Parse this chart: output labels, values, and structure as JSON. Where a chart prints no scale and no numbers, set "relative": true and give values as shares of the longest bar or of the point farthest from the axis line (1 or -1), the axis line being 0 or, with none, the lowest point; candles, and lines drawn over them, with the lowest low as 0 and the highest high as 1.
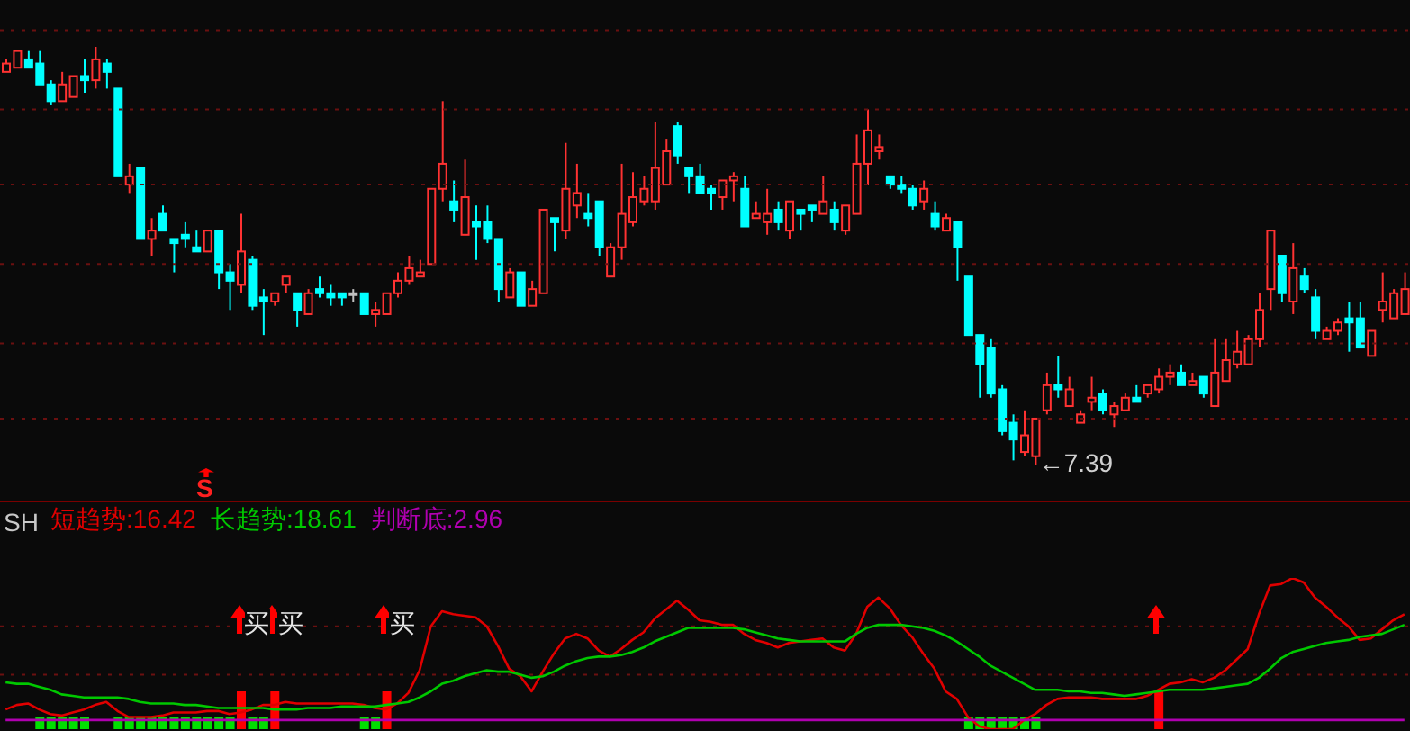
{
  "chart_data": [
    {
      "type": "candlestick",
      "relative": true,
      "ref_lines": [
        {
          "axis": "y",
          "value": 1.04,
          "color": "#6b1010",
          "line_style": "dotted"
        },
        {
          "axis": "y",
          "value": 0.85,
          "color": "#6b1010",
          "line_style": "dotted"
        },
        {
          "axis": "y",
          "value": 0.67,
          "color": "#6b1010",
          "line_style": "dotted"
        },
        {
          "axis": "y",
          "value": 0.48,
          "color": "#6b1010",
          "line_style": "dotted"
        },
        {
          "axis": "y",
          "value": 0.29,
          "color": "#6b1010",
          "line_style": "dotted"
        },
        {
          "axis": "y",
          "value": 0.11,
          "color": "#6b1010",
          "line_style": "dotted"
        }
      ],
      "categories": [
        null,
        null,
        null,
        null,
        null,
        null,
        null,
        null,
        null,
        null,
        null,
        null,
        null,
        null,
        null,
        null,
        null,
        null,
        null,
        null,
        null,
        null,
        null,
        null,
        null,
        null,
        null,
        null,
        null,
        null,
        null,
        null,
        null,
        null,
        null,
        null,
        null,
        null,
        null,
        null,
        null,
        null,
        null,
        null,
        null,
        null,
        null,
        null,
        null,
        null,
        null,
        null,
        null,
        null,
        null,
        null,
        null,
        null,
        null,
        null,
        null,
        null,
        null,
        null,
        null,
        null,
        null,
        null,
        null,
        null,
        null,
        null,
        null,
        null,
        null,
        null,
        null,
        null,
        null,
        null,
        null,
        null,
        null,
        null,
        null,
        null,
        null,
        null,
        null,
        null,
        null,
        null,
        null,
        null,
        null,
        null,
        null,
        null,
        null,
        null,
        null,
        null,
        null,
        null,
        null,
        null,
        null,
        null,
        null,
        null,
        null,
        null,
        null,
        null,
        null,
        null,
        null,
        null,
        null,
        null,
        null,
        null,
        null,
        null,
        null,
        null
      ],
      "ohlc": [
        [
          0.94,
          0.97,
          0.94,
          0.96
        ],
        [
          0.95,
          0.99,
          0.95,
          0.99
        ],
        [
          0.97,
          0.99,
          0.95,
          0.95
        ],
        [
          0.96,
          0.99,
          0.91,
          0.91
        ],
        [
          0.91,
          0.92,
          0.86,
          0.87
        ],
        [
          0.87,
          0.94,
          0.87,
          0.91
        ],
        [
          0.88,
          0.93,
          0.88,
          0.93
        ],
        [
          0.93,
          0.97,
          0.89,
          0.92
        ],
        [
          0.92,
          1.0,
          0.9,
          0.97
        ],
        [
          0.96,
          0.97,
          0.9,
          0.94
        ],
        [
          0.9,
          0.9,
          0.69,
          0.69
        ],
        [
          0.67,
          0.72,
          0.65,
          0.69
        ],
        [
          0.71,
          0.71,
          0.54,
          0.54
        ],
        [
          0.54,
          0.59,
          0.5,
          0.56
        ],
        [
          0.6,
          0.62,
          0.56,
          0.56
        ],
        [
          0.54,
          0.54,
          0.46,
          0.53
        ],
        [
          0.55,
          0.58,
          0.52,
          0.54
        ],
        [
          0.52,
          0.56,
          0.51,
          0.51
        ],
        [
          0.51,
          0.56,
          0.51,
          0.56
        ],
        [
          0.56,
          0.56,
          0.42,
          0.46
        ],
        [
          0.46,
          0.48,
          0.37,
          0.44
        ],
        [
          0.43,
          0.6,
          0.41,
          0.51
        ],
        [
          0.49,
          0.5,
          0.37,
          0.38
        ],
        [
          0.4,
          0.42,
          0.31,
          0.39
        ],
        [
          0.39,
          0.41,
          0.38,
          0.41
        ],
        [
          0.43,
          0.45,
          0.41,
          0.45
        ],
        [
          0.41,
          0.41,
          0.33,
          0.37
        ],
        [
          0.36,
          0.42,
          0.36,
          0.41
        ],
        [
          0.42,
          0.45,
          0.4,
          0.41
        ],
        [
          0.41,
          0.43,
          0.38,
          0.4
        ],
        [
          0.41,
          0.41,
          0.38,
          0.4
        ],
        [
          0.41,
          0.42,
          0.39,
          0.41
        ],
        [
          0.41,
          0.41,
          0.36,
          0.36
        ],
        [
          0.36,
          0.39,
          0.33,
          0.37
        ],
        [
          0.36,
          0.41,
          0.36,
          0.41
        ],
        [
          0.41,
          0.46,
          0.4,
          0.44
        ],
        [
          0.44,
          0.5,
          0.43,
          0.47
        ],
        [
          0.45,
          0.49,
          0.45,
          0.46
        ],
        [
          0.48,
          0.66,
          0.48,
          0.66
        ],
        [
          0.66,
          0.87,
          0.63,
          0.72
        ],
        [
          0.63,
          0.68,
          0.58,
          0.61
        ],
        [
          0.55,
          0.73,
          0.55,
          0.64
        ],
        [
          0.58,
          0.62,
          0.49,
          0.57
        ],
        [
          0.58,
          0.62,
          0.53,
          0.54
        ],
        [
          0.54,
          0.54,
          0.39,
          0.42
        ],
        [
          0.4,
          0.47,
          0.4,
          0.46
        ],
        [
          0.46,
          0.46,
          0.38,
          0.38
        ],
        [
          0.38,
          0.44,
          0.38,
          0.42
        ],
        [
          0.41,
          0.61,
          0.41,
          0.61
        ],
        [
          0.59,
          0.59,
          0.51,
          0.58
        ],
        [
          0.56,
          0.77,
          0.54,
          0.66
        ],
        [
          0.62,
          0.72,
          0.59,
          0.65
        ],
        [
          0.6,
          0.65,
          0.57,
          0.59
        ],
        [
          0.63,
          0.63,
          0.5,
          0.52
        ],
        [
          0.45,
          0.53,
          0.45,
          0.52
        ],
        [
          0.52,
          0.72,
          0.49,
          0.6
        ],
        [
          0.58,
          0.7,
          0.57,
          0.64
        ],
        [
          0.63,
          0.69,
          0.62,
          0.66
        ],
        [
          0.63,
          0.82,
          0.61,
          0.71
        ],
        [
          0.67,
          0.78,
          0.67,
          0.75
        ],
        [
          0.81,
          0.82,
          0.72,
          0.74
        ],
        [
          0.71,
          0.71,
          0.65,
          0.69
        ],
        [
          0.69,
          0.72,
          0.65,
          0.65
        ],
        [
          0.66,
          0.67,
          0.61,
          0.65
        ],
        [
          0.64,
          0.68,
          0.61,
          0.68
        ],
        [
          0.68,
          0.7,
          0.63,
          0.69
        ],
        [
          0.66,
          0.69,
          0.57,
          0.57
        ],
        [
          0.59,
          0.63,
          0.59,
          0.6
        ],
        [
          0.58,
          0.66,
          0.55,
          0.6
        ],
        [
          0.61,
          0.63,
          0.56,
          0.58
        ],
        [
          0.56,
          0.63,
          0.54,
          0.63
        ],
        [
          0.61,
          0.61,
          0.56,
          0.6
        ],
        [
          0.62,
          0.62,
          0.58,
          0.61
        ],
        [
          0.6,
          0.69,
          0.6,
          0.63
        ],
        [
          0.61,
          0.63,
          0.56,
          0.58
        ],
        [
          0.56,
          0.62,
          0.55,
          0.62
        ],
        [
          0.6,
          0.79,
          0.6,
          0.72
        ],
        [
          0.72,
          0.85,
          0.67,
          0.8
        ],
        [
          0.75,
          0.79,
          0.73,
          0.76
        ],
        [
          0.69,
          0.69,
          0.66,
          0.67
        ],
        [
          0.67,
          0.69,
          0.65,
          0.66
        ],
        [
          0.66,
          0.67,
          0.61,
          0.62
        ],
        [
          0.63,
          0.68,
          0.61,
          0.66
        ],
        [
          0.6,
          0.63,
          0.56,
          0.57
        ],
        [
          0.56,
          0.6,
          0.56,
          0.59
        ],
        [
          0.58,
          0.58,
          0.44,
          0.52
        ],
        [
          0.45,
          0.45,
          0.31,
          0.31
        ],
        [
          0.31,
          0.31,
          0.16,
          0.24
        ],
        [
          0.28,
          0.3,
          0.16,
          0.17
        ],
        [
          0.18,
          0.19,
          0.07,
          0.08
        ],
        [
          0.1,
          0.12,
          0.01,
          0.06
        ],
        [
          0.03,
          0.13,
          0.02,
          0.07
        ],
        [
          0.02,
          0.11,
          0,
          0.11
        ],
        [
          0.13,
          0.22,
          0.12,
          0.19
        ],
        [
          0.19,
          0.26,
          0.16,
          0.18
        ],
        [
          0.14,
          0.21,
          0.14,
          0.18
        ],
        [
          0.1,
          0.13,
          0.1,
          0.12
        ],
        [
          0.15,
          0.21,
          0.13,
          0.16
        ],
        [
          0.17,
          0.18,
          0.12,
          0.13
        ],
        [
          0.12,
          0.15,
          0.09,
          0.14
        ],
        [
          0.13,
          0.17,
          0.13,
          0.16
        ],
        [
          0.16,
          0.19,
          0.15,
          0.15
        ],
        [
          0.17,
          0.19,
          0.16,
          0.19
        ],
        [
          0.18,
          0.23,
          0.17,
          0.21
        ],
        [
          0.21,
          0.24,
          0.19,
          0.22
        ],
        [
          0.22,
          0.24,
          0.19,
          0.19
        ],
        [
          0.19,
          0.22,
          0.19,
          0.2
        ],
        [
          0.21,
          0.21,
          0.16,
          0.17
        ],
        [
          0.14,
          0.3,
          0.14,
          0.22
        ],
        [
          0.2,
          0.3,
          0.2,
          0.25
        ],
        [
          0.24,
          0.32,
          0.23,
          0.27
        ],
        [
          0.24,
          0.31,
          0.24,
          0.3
        ],
        [
          0.3,
          0.41,
          0.28,
          0.37
        ],
        [
          0.42,
          0.56,
          0.37,
          0.56
        ],
        [
          0.5,
          0.5,
          0.39,
          0.41
        ],
        [
          0.39,
          0.53,
          0.36,
          0.47
        ],
        [
          0.45,
          0.47,
          0.41,
          0.42
        ],
        [
          0.4,
          0.42,
          0.3,
          0.32
        ],
        [
          0.3,
          0.33,
          0.3,
          0.32
        ],
        [
          0.32,
          0.35,
          0.31,
          0.34
        ],
        [
          0.35,
          0.39,
          0.27,
          0.34
        ],
        [
          0.35,
          0.39,
          0.28,
          0.28
        ],
        [
          0.26,
          0.32,
          0.26,
          0.32
        ],
        [
          0.37,
          0.46,
          0.34,
          0.39
        ],
        [
          0.35,
          0.42,
          0.35,
          0.41
        ],
        [
          0.36,
          0.46,
          0.36,
          0.42
        ]
      ],
      "colors": [
        "#ff3232",
        "#ff3232",
        "#00ffff",
        "#00ffff",
        "#00ffff",
        "#ff3232",
        "#ff3232",
        "#00ffff",
        "#ff3232",
        "#00ffff",
        "#00ffff",
        "#ff3232",
        "#00ffff",
        "#ff3232",
        "#00ffff",
        "#00ffff",
        "#00ffff",
        "#00ffff",
        "#ff3232",
        "#00ffff",
        "#00ffff",
        "#ff3232",
        "#00ffff",
        "#00ffff",
        "#ff3232",
        "#ff3232",
        "#00ffff",
        "#ff3232",
        "#00ffff",
        "#00ffff",
        "#00ffff",
        "#c0c0c0",
        "#00ffff",
        "#ff3232",
        "#ff3232",
        "#ff3232",
        "#ff3232",
        "#ff3232",
        "#ff3232",
        "#ff3232",
        "#00ffff",
        "#ff3232",
        "#00ffff",
        "#00ffff",
        "#00ffff",
        "#ff3232",
        "#00ffff",
        "#ff3232",
        "#ff3232",
        "#00ffff",
        "#ff3232",
        "#ff3232",
        "#00ffff",
        "#00ffff",
        "#ff3232",
        "#ff3232",
        "#ff3232",
        "#ff3232",
        "#ff3232",
        "#ff3232",
        "#00ffff",
        "#00ffff",
        "#00ffff",
        "#00ffff",
        "#ff3232",
        "#ff3232",
        "#00ffff",
        "#ff3232",
        "#ff3232",
        "#00ffff",
        "#ff3232",
        "#00ffff",
        "#00ffff",
        "#ff3232",
        "#00ffff",
        "#ff3232",
        "#ff3232",
        "#ff3232",
        "#ff3232",
        "#00ffff",
        "#00ffff",
        "#00ffff",
        "#ff3232",
        "#00ffff",
        "#ff3232",
        "#00ffff",
        "#00ffff",
        "#00ffff",
        "#00ffff",
        "#00ffff",
        "#00ffff",
        "#ff3232",
        "#ff3232",
        "#ff3232",
        "#00ffff",
        "#ff3232",
        "#ff3232",
        "#ff3232",
        "#00ffff",
        "#ff3232",
        "#ff3232",
        "#00ffff",
        "#ff3232",
        "#ff3232",
        "#ff3232",
        "#00ffff",
        "#ff3232",
        "#00ffff",
        "#ff3232",
        "#ff3232",
        "#ff3232",
        "#ff3232",
        "#ff3232",
        "#ff3232",
        "#00ffff",
        "#ff3232",
        "#00ffff",
        "#00ffff",
        "#ff3232",
        "#ff3232",
        "#00ffff",
        "#00ffff",
        "#ff3232",
        "#ff3232",
        "#ff3232",
        "#ff3232"
      ],
      "annotations": [
        "S",
        "←7.39"
      ]
    },
    {
      "type": "line",
      "relative": true,
      "legend": "top left",
      "ref_lines": [
        {
          "axis": "y",
          "value": 0.68,
          "color": "#6b1010",
          "line_style": "dotted"
        },
        {
          "axis": "y",
          "value": 0.36,
          "color": "#6b1010",
          "line_style": "dotted"
        }
      ],
      "categories": [
        null,
        null,
        null,
        null,
        null,
        null,
        null,
        null,
        null,
        null,
        null,
        null,
        null,
        null,
        null,
        null,
        null,
        null,
        null,
        null,
        null,
        null,
        null,
        null,
        null,
        null,
        null,
        null,
        null,
        null,
        null,
        null,
        null,
        null,
        null,
        null,
        null,
        null,
        null,
        null,
        null,
        null,
        null,
        null,
        null,
        null,
        null,
        null,
        null,
        null,
        null,
        null,
        null,
        null,
        null,
        null,
        null,
        null,
        null,
        null,
        null,
        null,
        null,
        null,
        null,
        null,
        null,
        null,
        null,
        null,
        null,
        null,
        null,
        null,
        null,
        null,
        null,
        null,
        null,
        null,
        null,
        null,
        null,
        null,
        null,
        null,
        null,
        null,
        null,
        null,
        null,
        null,
        null,
        null,
        null,
        null,
        null,
        null,
        null,
        null,
        null,
        null,
        null,
        null,
        null,
        null,
        null,
        null,
        null,
        null,
        null,
        null,
        null,
        null,
        null,
        null,
        null,
        null,
        null,
        null,
        null,
        null,
        null,
        null,
        null,
        null
      ],
      "series": [
        {
          "name": "短趋势:16.42",
          "type": "line",
          "color": "#e00000",
          "values": [
            0.13,
            0.16,
            0.17,
            0.13,
            0.1,
            0.09,
            0.11,
            0.13,
            0.16,
            0.18,
            0.12,
            0.08,
            0.08,
            0.08,
            0.09,
            0.11,
            0.11,
            0.11,
            0.12,
            0.12,
            0.1,
            0.11,
            0.13,
            0.16,
            0.16,
            0.18,
            0.17,
            0.17,
            0.17,
            0.17,
            0.17,
            0.17,
            0.16,
            0.14,
            0.13,
            0.17,
            0.24,
            0.39,
            0.68,
            0.78,
            0.76,
            0.75,
            0.74,
            0.68,
            0.55,
            0.4,
            0.35,
            0.25,
            0.38,
            0.5,
            0.6,
            0.63,
            0.6,
            0.52,
            0.48,
            0.53,
            0.59,
            0.64,
            0.73,
            0.79,
            0.85,
            0.79,
            0.72,
            0.71,
            0.69,
            0.69,
            0.63,
            0.59,
            0.57,
            0.54,
            0.57,
            0.58,
            0.59,
            0.6,
            0.54,
            0.52,
            0.63,
            0.81,
            0.87,
            0.8,
            0.69,
            0.61,
            0.5,
            0.4,
            0.25,
            0.2,
            0.08,
            0.02,
            0,
            0,
            0,
            0.06,
            0.1,
            0.16,
            0.2,
            0.21,
            0.21,
            0.21,
            0.2,
            0.2,
            0.2,
            0.2,
            0.22,
            0.26,
            0.3,
            0.31,
            0.33,
            0.31,
            0.34,
            0.39,
            0.46,
            0.53,
            0.76,
            0.95,
            0.96,
            1,
            0.97,
            0.87,
            0.81,
            0.74,
            0.68,
            0.59,
            0.6,
            0.66,
            0.72,
            0.76
          ]
        },
        {
          "name": "长趋势:18.61",
          "type": "line",
          "color": "#00c800",
          "values": [
            0.31,
            0.3,
            0.3,
            0.28,
            0.26,
            0.23,
            0.22,
            0.21,
            0.21,
            0.21,
            0.21,
            0.2,
            0.18,
            0.17,
            0.17,
            0.17,
            0.16,
            0.16,
            0.15,
            0.14,
            0.14,
            0.14,
            0.14,
            0.14,
            0.13,
            0.13,
            0.13,
            0.14,
            0.14,
            0.14,
            0.15,
            0.15,
            0.15,
            0.15,
            0.16,
            0.17,
            0.18,
            0.21,
            0.25,
            0.3,
            0.32,
            0.35,
            0.37,
            0.39,
            0.38,
            0.38,
            0.36,
            0.34,
            0.35,
            0.38,
            0.42,
            0.45,
            0.47,
            0.48,
            0.48,
            0.49,
            0.51,
            0.54,
            0.58,
            0.61,
            0.64,
            0.67,
            0.67,
            0.67,
            0.67,
            0.67,
            0.66,
            0.64,
            0.62,
            0.6,
            0.59,
            0.58,
            0.58,
            0.58,
            0.58,
            0.58,
            0.63,
            0.67,
            0.69,
            0.69,
            0.69,
            0.68,
            0.67,
            0.65,
            0.62,
            0.58,
            0.53,
            0.48,
            0.42,
            0.38,
            0.34,
            0.3,
            0.26,
            0.26,
            0.26,
            0.25,
            0.25,
            0.24,
            0.24,
            0.23,
            0.22,
            0.23,
            0.24,
            0.25,
            0.26,
            0.26,
            0.26,
            0.26,
            0.27,
            0.28,
            0.29,
            0.3,
            0.34,
            0.4,
            0.47,
            0.51,
            0.53,
            0.55,
            0.57,
            0.58,
            0.59,
            0.61,
            0.62,
            0.63,
            0.66,
            0.69
          ]
        },
        {
          "name": "判断底:2.96",
          "type": "line",
          "color": "#b000b0",
          "values": [
            0.06,
            0.06,
            0.06,
            0.06,
            0.06,
            0.06,
            0.06,
            0.06,
            0.06,
            0.06,
            0.06,
            0.06,
            0.06,
            0.06,
            0.06,
            0.06,
            0.06,
            0.06,
            0.06,
            0.06,
            0.06,
            0.06,
            0.06,
            0.06,
            0.06,
            0.06,
            0.06,
            0.06,
            0.06,
            0.06,
            0.06,
            0.06,
            0.06,
            0.06,
            0.06,
            0.06,
            0.06,
            0.06,
            0.06,
            0.06,
            0.06,
            0.06,
            0.06,
            0.06,
            0.06,
            0.06,
            0.06,
            0.06,
            0.06,
            0.06,
            0.06,
            0.06,
            0.06,
            0.06,
            0.06,
            0.06,
            0.06,
            0.06,
            0.06,
            0.06,
            0.06,
            0.06,
            0.06,
            0.06,
            0.06,
            0.06,
            0.06,
            0.06,
            0.06,
            0.06,
            0.06,
            0.06,
            0.06,
            0.06,
            0.06,
            0.06,
            0.06,
            0.06,
            0.06,
            0.06,
            0.06,
            0.06,
            0.06,
            0.06,
            0.06,
            0.06,
            0.06,
            0.06,
            0.06,
            0.06,
            0.06,
            0.06,
            0.06,
            0.06,
            0.06,
            0.06,
            0.06,
            0.06,
            0.06,
            0.06,
            0.06,
            0.06,
            0.06,
            0.06,
            0.06,
            0.06,
            0.06,
            0.06,
            0.06,
            0.06,
            0.06,
            0.06,
            0.06,
            0.06,
            0.06,
            0.06,
            0.06,
            0.06,
            0.06,
            0.06,
            0.06,
            0.06,
            0.06,
            0.06,
            0.06,
            0.06
          ]
        },
        {
          "type": "bar",
          "color": "#ff0000",
          "values": [
            null,
            null,
            null,
            null,
            null,
            null,
            null,
            null,
            null,
            null,
            null,
            null,
            null,
            null,
            null,
            null,
            null,
            null,
            null,
            null,
            null,
            0.25,
            null,
            null,
            0.25,
            null,
            null,
            null,
            null,
            null,
            null,
            null,
            null,
            null,
            0.25,
            null,
            null,
            null,
            null,
            null,
            null,
            null,
            null,
            null,
            null,
            null,
            null,
            null,
            null,
            null,
            null,
            null,
            null,
            null,
            null,
            null,
            null,
            null,
            null,
            null,
            null,
            null,
            null,
            null,
            null,
            null,
            null,
            null,
            null,
            null,
            null,
            null,
            null,
            null,
            null,
            null,
            null,
            null,
            null,
            null,
            null,
            null,
            null,
            null,
            null,
            null,
            null,
            null,
            null,
            null,
            null,
            null,
            null,
            null,
            null,
            null,
            null,
            null,
            null,
            null,
            null,
            null,
            null,
            0.25,
            null,
            null,
            null,
            null,
            null,
            null,
            null,
            null,
            null,
            null,
            null,
            null,
            null,
            null,
            null,
            null,
            null,
            null,
            null,
            null,
            null,
            null
          ]
        },
        {
          "type": "bar",
          "color": "#00e000",
          "values": [
            null,
            null,
            null,
            0.08,
            0.08,
            0.08,
            0.08,
            0.08,
            null,
            null,
            0.08,
            0.08,
            0.08,
            0.08,
            0.08,
            0.08,
            0.08,
            0.08,
            0.08,
            0.08,
            0.08,
            null,
            0.08,
            0.08,
            null,
            null,
            null,
            null,
            null,
            null,
            null,
            null,
            0.08,
            0.08,
            null,
            null,
            null,
            null,
            null,
            null,
            null,
            null,
            null,
            null,
            null,
            null,
            null,
            null,
            null,
            null,
            null,
            null,
            null,
            null,
            null,
            null,
            null,
            null,
            null,
            null,
            null,
            null,
            null,
            null,
            null,
            null,
            null,
            null,
            null,
            null,
            null,
            null,
            null,
            null,
            null,
            null,
            null,
            null,
            null,
            null,
            null,
            null,
            null,
            null,
            null,
            null,
            0.08,
            0.08,
            0.08,
            0.08,
            0.08,
            0.08,
            0.08,
            null,
            null,
            null,
            null,
            null,
            null,
            null,
            null,
            null,
            null,
            null,
            null,
            null,
            null,
            null,
            null,
            null,
            null,
            null,
            null,
            null,
            null,
            null,
            null,
            null,
            null,
            null,
            null,
            null,
            null,
            null,
            null,
            null
          ]
        }
      ],
      "annotations": [
        "SH",
        "买",
        "买",
        "买"
      ]
    }
  ]
}
